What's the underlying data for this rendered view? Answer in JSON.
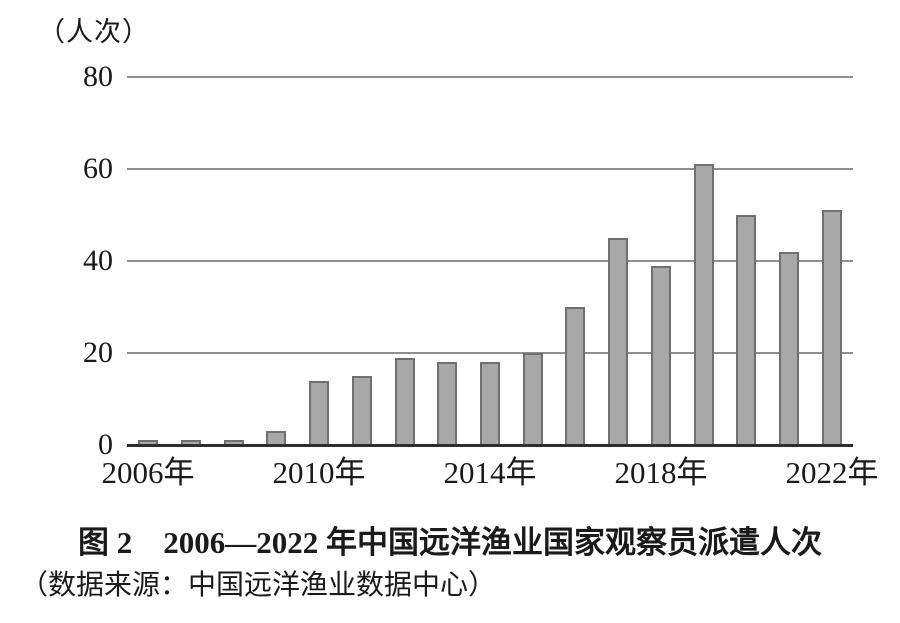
{
  "figure": {
    "number_and_title": "图 2　2006—2022 年中国远洋渔业国家观察员派遣人次",
    "source_note": "（数据来源：中国远洋渔业数据中心）"
  },
  "chart_data": {
    "type": "bar",
    "title": "图 2　2006—2022 年中国远洋渔业国家观察员派遣人次",
    "source": "（数据来源：中国远洋渔业数据中心）",
    "ylabel": "（人次）",
    "xlabel": "",
    "ylim": [
      0,
      80
    ],
    "y_ticks": [
      0,
      20,
      40,
      60,
      80
    ],
    "grid": true,
    "legend": "none",
    "categories": [
      "2006",
      "2007",
      "2008",
      "2009",
      "2010",
      "2011",
      "2012",
      "2013",
      "2014",
      "2015",
      "2016",
      "2017",
      "2018",
      "2019",
      "2020",
      "2021",
      "2022"
    ],
    "values": [
      1,
      1,
      1,
      3,
      14,
      15,
      19,
      18,
      18,
      20,
      30,
      45,
      39,
      61,
      50,
      42,
      51
    ],
    "x_tick_labels": [
      {
        "index": 0,
        "label": "2006年"
      },
      {
        "index": 4,
        "label": "2010年"
      },
      {
        "index": 8,
        "label": "2014年"
      },
      {
        "index": 12,
        "label": "2018年"
      },
      {
        "index": 16,
        "label": "2022年"
      }
    ],
    "colors": {
      "bar_fill": "#a8a8a8",
      "bar_border": "#6f6f6f",
      "gridline": "#8f8f8f",
      "axis": "#2e2e2e",
      "text": "#1a1a1a",
      "background": "#ffffff"
    }
  }
}
